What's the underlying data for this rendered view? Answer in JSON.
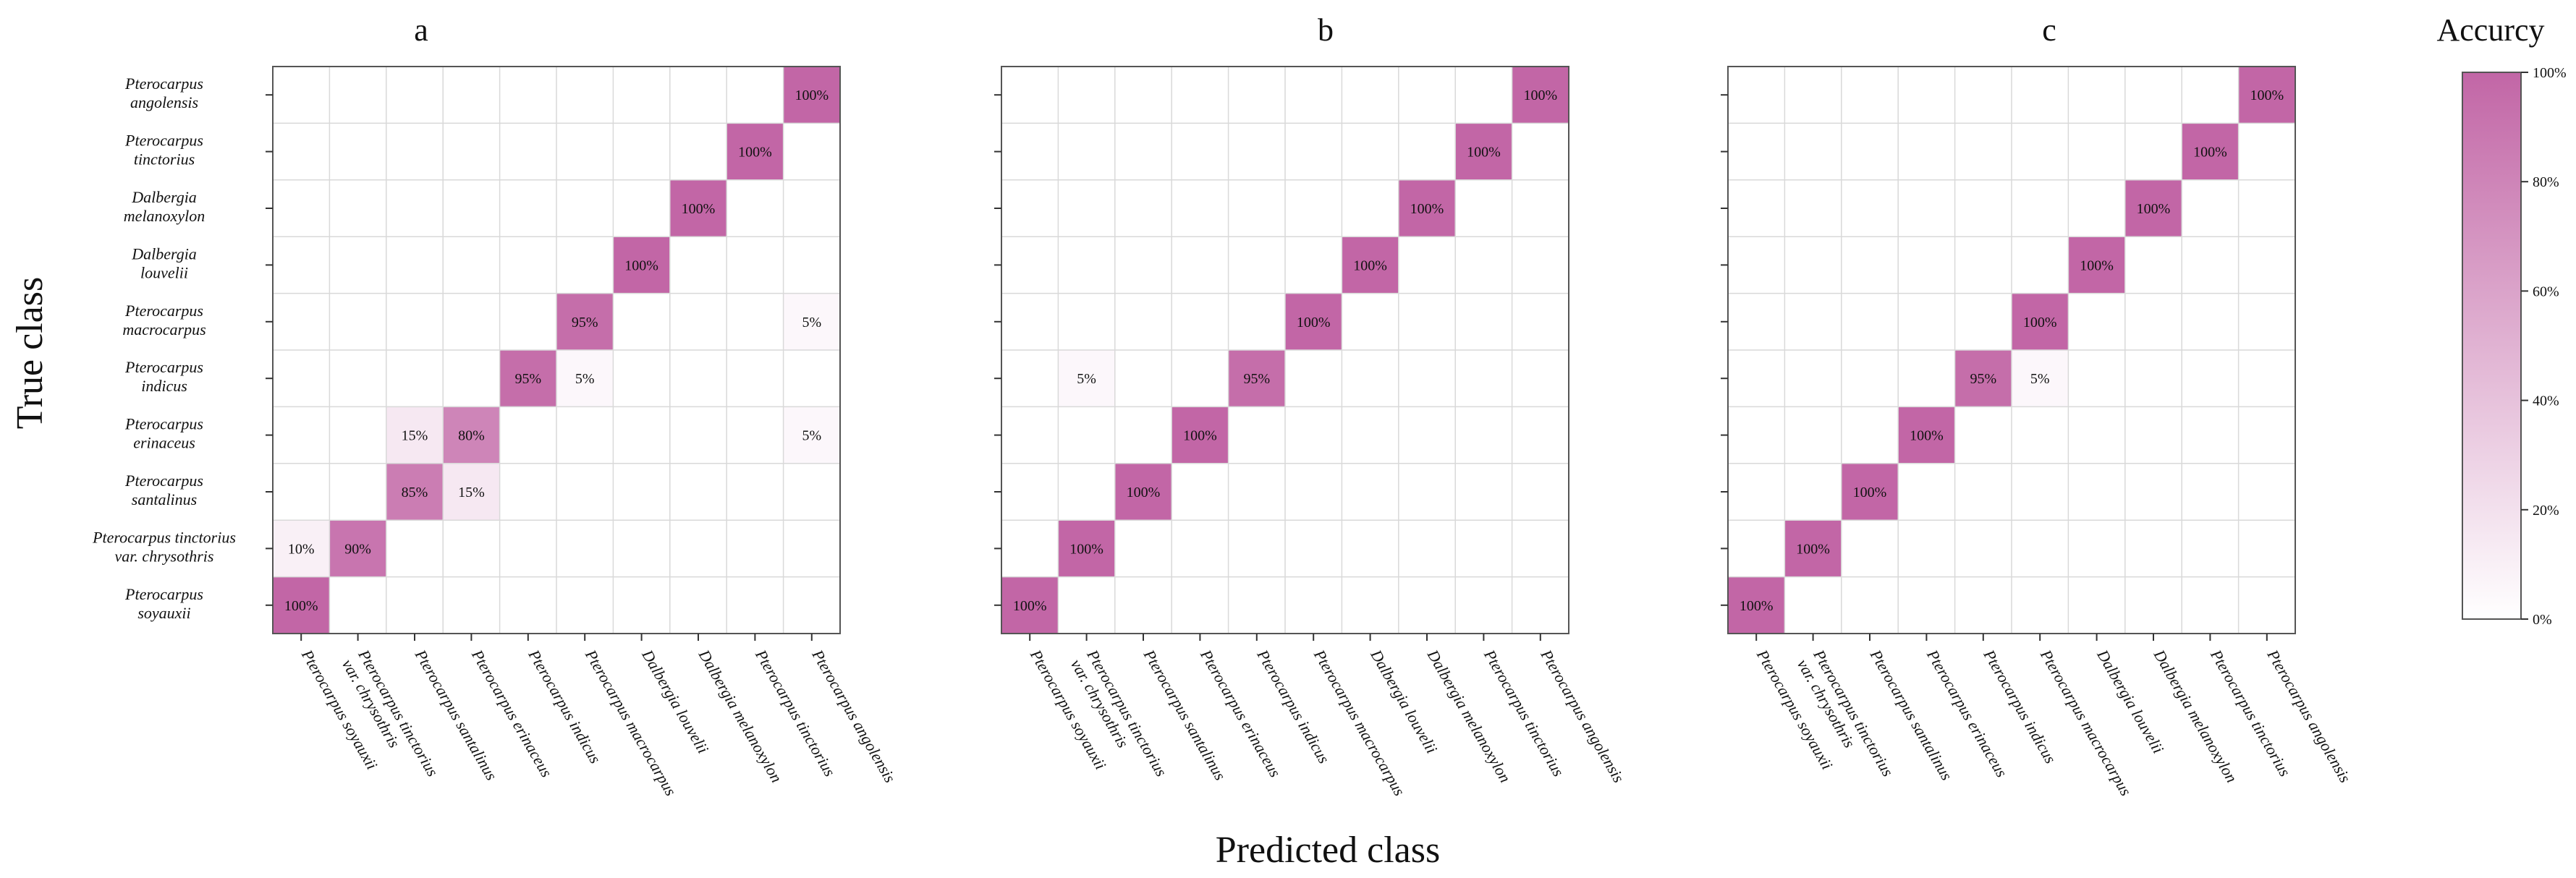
{
  "figure": {
    "xlabel": "Predicted class",
    "ylabel": "True class",
    "legend_title": "Accurcy",
    "legend_ticks": [
      "100%",
      "80%",
      "60%",
      "40%",
      "20%",
      "0%"
    ],
    "legend_tick_values": [
      100,
      80,
      60,
      40,
      20,
      0
    ]
  },
  "colors": {
    "max": "#c266a6",
    "min": "#ffffff",
    "grid": "#d9d9d9",
    "frame": "#555555"
  },
  "true_labels": [
    [
      "Pterocarpus",
      "angolensis"
    ],
    [
      "Pterocarpus",
      "tinctorius"
    ],
    [
      "Dalbergia",
      "melanoxylon"
    ],
    [
      "Dalbergia",
      "louvelii"
    ],
    [
      "Pterocarpus",
      "macrocarpus"
    ],
    [
      "Pterocarpus",
      "indicus"
    ],
    [
      "Pterocarpus",
      "erinaceus"
    ],
    [
      "Pterocarpus",
      "santalinus"
    ],
    [
      "Pterocarpus tinctorius",
      "var. chrysothris"
    ],
    [
      "Pterocarpus",
      "soyauxii"
    ]
  ],
  "predicted_labels": [
    [
      "Pterocarpus soyauxii"
    ],
    [
      "Pterocarpus tinctorius",
      "var. chrysothris"
    ],
    [
      "Pterocarpus santalinus"
    ],
    [
      "Pterocarpus erinaceus"
    ],
    [
      "Pterocarpus indicus"
    ],
    [
      "Pterocarpus macrocarpus"
    ],
    [
      "Dalbergia louvelii"
    ],
    [
      "Dalbergia melanoxylon"
    ],
    [
      "Pterocarpus tinctorius"
    ],
    [
      "Pterocarpus angolensis"
    ]
  ],
  "chart_data": [
    {
      "type": "heatmap",
      "title": "a",
      "rows_true": [
        "Pterocarpus angolensis",
        "Pterocarpus tinctorius",
        "Dalbergia melanoxylon",
        "Dalbergia louvelii",
        "Pterocarpus macrocarpus",
        "Pterocarpus indicus",
        "Pterocarpus erinaceus",
        "Pterocarpus santalinus",
        "Pterocarpus tinctorius var. chrysothris",
        "Pterocarpus soyauxii"
      ],
      "cols_predicted": [
        "Pterocarpus soyauxii",
        "Pterocarpus tinctorius var. chrysothris",
        "Pterocarpus santalinus",
        "Pterocarpus erinaceus",
        "Pterocarpus indicus",
        "Pterocarpus macrocarpus",
        "Dalbergia louvelii",
        "Dalbergia melanoxylon",
        "Pterocarpus tinctorius",
        "Pterocarpus angolensis"
      ],
      "values": [
        [
          0,
          0,
          0,
          0,
          0,
          0,
          0,
          0,
          0,
          100
        ],
        [
          0,
          0,
          0,
          0,
          0,
          0,
          0,
          0,
          100,
          0
        ],
        [
          0,
          0,
          0,
          0,
          0,
          0,
          0,
          100,
          0,
          0
        ],
        [
          0,
          0,
          0,
          0,
          0,
          0,
          100,
          0,
          0,
          0
        ],
        [
          0,
          0,
          0,
          0,
          0,
          95,
          0,
          0,
          0,
          5
        ],
        [
          0,
          0,
          0,
          0,
          95,
          5,
          0,
          0,
          0,
          0
        ],
        [
          0,
          0,
          15,
          80,
          0,
          0,
          0,
          0,
          0,
          5
        ],
        [
          0,
          0,
          85,
          15,
          0,
          0,
          0,
          0,
          0,
          0
        ],
        [
          10,
          90,
          0,
          0,
          0,
          0,
          0,
          0,
          0,
          0
        ],
        [
          100,
          0,
          0,
          0,
          0,
          0,
          0,
          0,
          0,
          0
        ]
      ],
      "unit": "%",
      "color_range": [
        0,
        100
      ]
    },
    {
      "type": "heatmap",
      "title": "b",
      "rows_true": [
        "Pterocarpus angolensis",
        "Pterocarpus tinctorius",
        "Dalbergia melanoxylon",
        "Dalbergia louvelii",
        "Pterocarpus macrocarpus",
        "Pterocarpus indicus",
        "Pterocarpus erinaceus",
        "Pterocarpus santalinus",
        "Pterocarpus tinctorius var. chrysothris",
        "Pterocarpus soyauxii"
      ],
      "cols_predicted": [
        "Pterocarpus soyauxii",
        "Pterocarpus tinctorius var. chrysothris",
        "Pterocarpus santalinus",
        "Pterocarpus erinaceus",
        "Pterocarpus indicus",
        "Pterocarpus macrocarpus",
        "Dalbergia louvelii",
        "Dalbergia melanoxylon",
        "Pterocarpus tinctorius",
        "Pterocarpus angolensis"
      ],
      "values": [
        [
          0,
          0,
          0,
          0,
          0,
          0,
          0,
          0,
          0,
          100
        ],
        [
          0,
          0,
          0,
          0,
          0,
          0,
          0,
          0,
          100,
          0
        ],
        [
          0,
          0,
          0,
          0,
          0,
          0,
          0,
          100,
          0,
          0
        ],
        [
          0,
          0,
          0,
          0,
          0,
          0,
          100,
          0,
          0,
          0
        ],
        [
          0,
          0,
          0,
          0,
          0,
          100,
          0,
          0,
          0,
          0
        ],
        [
          0,
          5,
          0,
          0,
          95,
          0,
          0,
          0,
          0,
          0
        ],
        [
          0,
          0,
          0,
          100,
          0,
          0,
          0,
          0,
          0,
          0
        ],
        [
          0,
          0,
          100,
          0,
          0,
          0,
          0,
          0,
          0,
          0
        ],
        [
          0,
          100,
          0,
          0,
          0,
          0,
          0,
          0,
          0,
          0
        ],
        [
          100,
          0,
          0,
          0,
          0,
          0,
          0,
          0,
          0,
          0
        ]
      ],
      "unit": "%",
      "color_range": [
        0,
        100
      ]
    },
    {
      "type": "heatmap",
      "title": "c",
      "rows_true": [
        "Pterocarpus angolensis",
        "Pterocarpus tinctorius",
        "Dalbergia melanoxylon",
        "Dalbergia louvelii",
        "Pterocarpus macrocarpus",
        "Pterocarpus indicus",
        "Pterocarpus erinaceus",
        "Pterocarpus santalinus",
        "Pterocarpus tinctorius var. chrysothris",
        "Pterocarpus soyauxii"
      ],
      "cols_predicted": [
        "Pterocarpus soyauxii",
        "Pterocarpus tinctorius var. chrysothris",
        "Pterocarpus santalinus",
        "Pterocarpus erinaceus",
        "Pterocarpus indicus",
        "Pterocarpus macrocarpus",
        "Dalbergia louvelii",
        "Dalbergia melanoxylon",
        "Pterocarpus tinctorius",
        "Pterocarpus angolensis"
      ],
      "values": [
        [
          0,
          0,
          0,
          0,
          0,
          0,
          0,
          0,
          0,
          100
        ],
        [
          0,
          0,
          0,
          0,
          0,
          0,
          0,
          0,
          100,
          0
        ],
        [
          0,
          0,
          0,
          0,
          0,
          0,
          0,
          100,
          0,
          0
        ],
        [
          0,
          0,
          0,
          0,
          0,
          0,
          100,
          0,
          0,
          0
        ],
        [
          0,
          0,
          0,
          0,
          0,
          100,
          0,
          0,
          0,
          0
        ],
        [
          0,
          0,
          0,
          0,
          95,
          5,
          0,
          0,
          0,
          0
        ],
        [
          0,
          0,
          0,
          100,
          0,
          0,
          0,
          0,
          0,
          0
        ],
        [
          0,
          0,
          100,
          0,
          0,
          0,
          0,
          0,
          0,
          0
        ],
        [
          0,
          100,
          0,
          0,
          0,
          0,
          0,
          0,
          0,
          0
        ],
        [
          100,
          0,
          0,
          0,
          0,
          0,
          0,
          0,
          0,
          0
        ]
      ],
      "unit": "%",
      "color_range": [
        0,
        100
      ]
    }
  ]
}
